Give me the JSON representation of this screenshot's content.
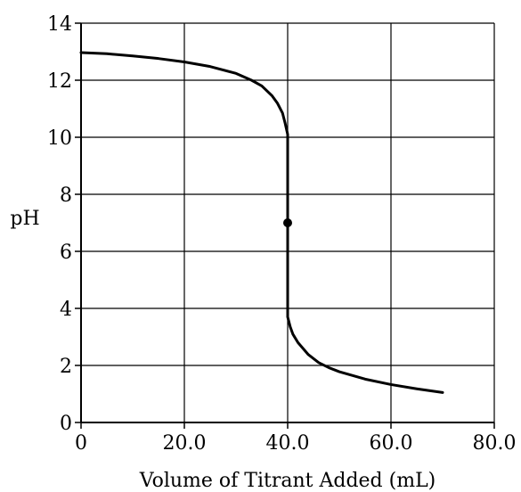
{
  "chart_data": {
    "type": "line",
    "title": "",
    "xlabel": "Volume of Titrant Added (mL)",
    "ylabel": "pH",
    "xlim": [
      0,
      80
    ],
    "ylim": [
      0,
      14
    ],
    "x_ticks": [
      0,
      20,
      40,
      60,
      80
    ],
    "x_tick_labels": [
      "0",
      "20.0",
      "40.0",
      "60.0",
      "80.0"
    ],
    "y_ticks": [
      0,
      2,
      4,
      6,
      8,
      10,
      12,
      14
    ],
    "y_tick_labels": [
      "0",
      "2",
      "4",
      "6",
      "8",
      "10",
      "12",
      "14"
    ],
    "grid": true,
    "series": [
      {
        "x": [
          0,
          5,
          10,
          15,
          20,
          25,
          30,
          33,
          35,
          37,
          38,
          39,
          39.5,
          40,
          40,
          40,
          40,
          40.5,
          41,
          42,
          44,
          46,
          48,
          50,
          55,
          60,
          65,
          70
        ],
        "y": [
          12.97,
          12.93,
          12.85,
          12.76,
          12.64,
          12.48,
          12.24,
          12.0,
          11.8,
          11.45,
          11.2,
          10.85,
          10.5,
          10.1,
          7.0,
          3.9,
          3.7,
          3.35,
          3.1,
          2.8,
          2.38,
          2.1,
          1.92,
          1.78,
          1.52,
          1.33,
          1.18,
          1.05
        ]
      }
    ],
    "annotations": [
      {
        "type": "point",
        "x": 40,
        "y": 7.0
      }
    ],
    "line_color": "#000000"
  }
}
